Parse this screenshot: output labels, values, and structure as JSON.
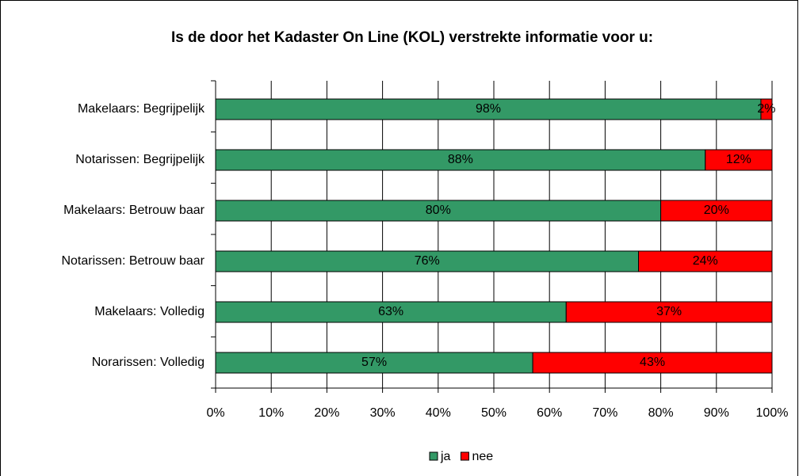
{
  "chart_data": {
    "type": "stacked_bar",
    "orientation": "horizontal",
    "title": "Is de door het Kadaster On Line (KOL) verstrekte informatie voor u:",
    "categories": [
      "Makelaars: Begrijpelijk",
      "Notarissen: Begrijpelijk",
      "Makelaars: Betrouw baar",
      "Notarissen: Betrouw baar",
      "Makelaars: Volledig",
      "Norarissen: Volledig"
    ],
    "series": [
      {
        "name": "ja",
        "color": "#339966",
        "values": [
          98,
          88,
          80,
          76,
          63,
          57
        ],
        "value_labels": [
          "98%",
          "88%",
          "80%",
          "76%",
          "63%",
          "57%"
        ]
      },
      {
        "name": "nee",
        "color": "#ff0000",
        "values": [
          2,
          12,
          20,
          24,
          37,
          43
        ],
        "value_labels": [
          "2%",
          "12%",
          "20%",
          "24%",
          "37%",
          "43%"
        ]
      }
    ],
    "xlim": [
      0,
      100
    ],
    "xticks": [
      {
        "value": 0,
        "label": "0%"
      },
      {
        "value": 10,
        "label": "10%"
      },
      {
        "value": 20,
        "label": "20%"
      },
      {
        "value": 30,
        "label": "30%"
      },
      {
        "value": 40,
        "label": "40%"
      },
      {
        "value": 50,
        "label": "50%"
      },
      {
        "value": 60,
        "label": "60%"
      },
      {
        "value": 70,
        "label": "70%"
      },
      {
        "value": 80,
        "label": "80%"
      },
      {
        "value": 90,
        "label": "90%"
      },
      {
        "value": 100,
        "label": "100%"
      }
    ],
    "grid": true,
    "legend": "bottom"
  }
}
